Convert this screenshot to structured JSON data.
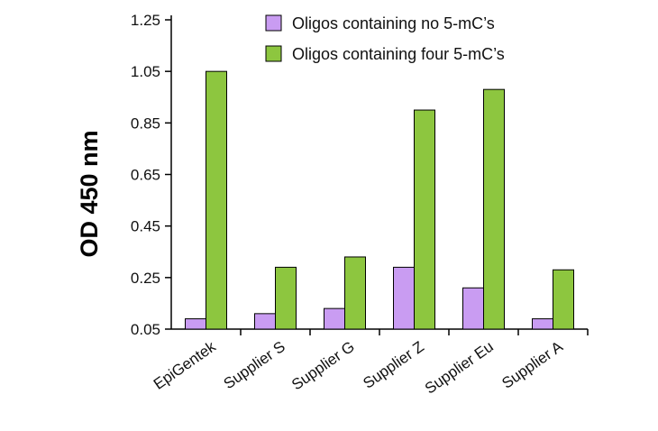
{
  "chart_data": {
    "type": "bar",
    "title": "",
    "xlabel": "",
    "ylabel": "OD 450 nm",
    "ylim": [
      0.05,
      1.25
    ],
    "yticks": [
      "0.05",
      "0.25",
      "0.45",
      "0.65",
      "0.85",
      "1.05",
      "1.25"
    ],
    "categories": [
      "EpiGentek",
      "Supplier S",
      "Supplier G",
      "Supplier Z",
      "Supplier Eu",
      "Supplier A"
    ],
    "highlight_category": "EpiGentek",
    "series": [
      {
        "name": "Oligos containing no 5-mC’s",
        "color": "#c99cf2",
        "values": [
          0.09,
          0.11,
          0.13,
          0.29,
          0.21,
          0.09
        ]
      },
      {
        "name": "Oligos containing four 5-mC’s",
        "color": "#8dc63f",
        "values": [
          1.05,
          0.29,
          0.33,
          0.9,
          0.98,
          0.28
        ]
      }
    ],
    "highlight_color": "#1f7a3a",
    "grid": false,
    "legend_position": "top-right"
  }
}
